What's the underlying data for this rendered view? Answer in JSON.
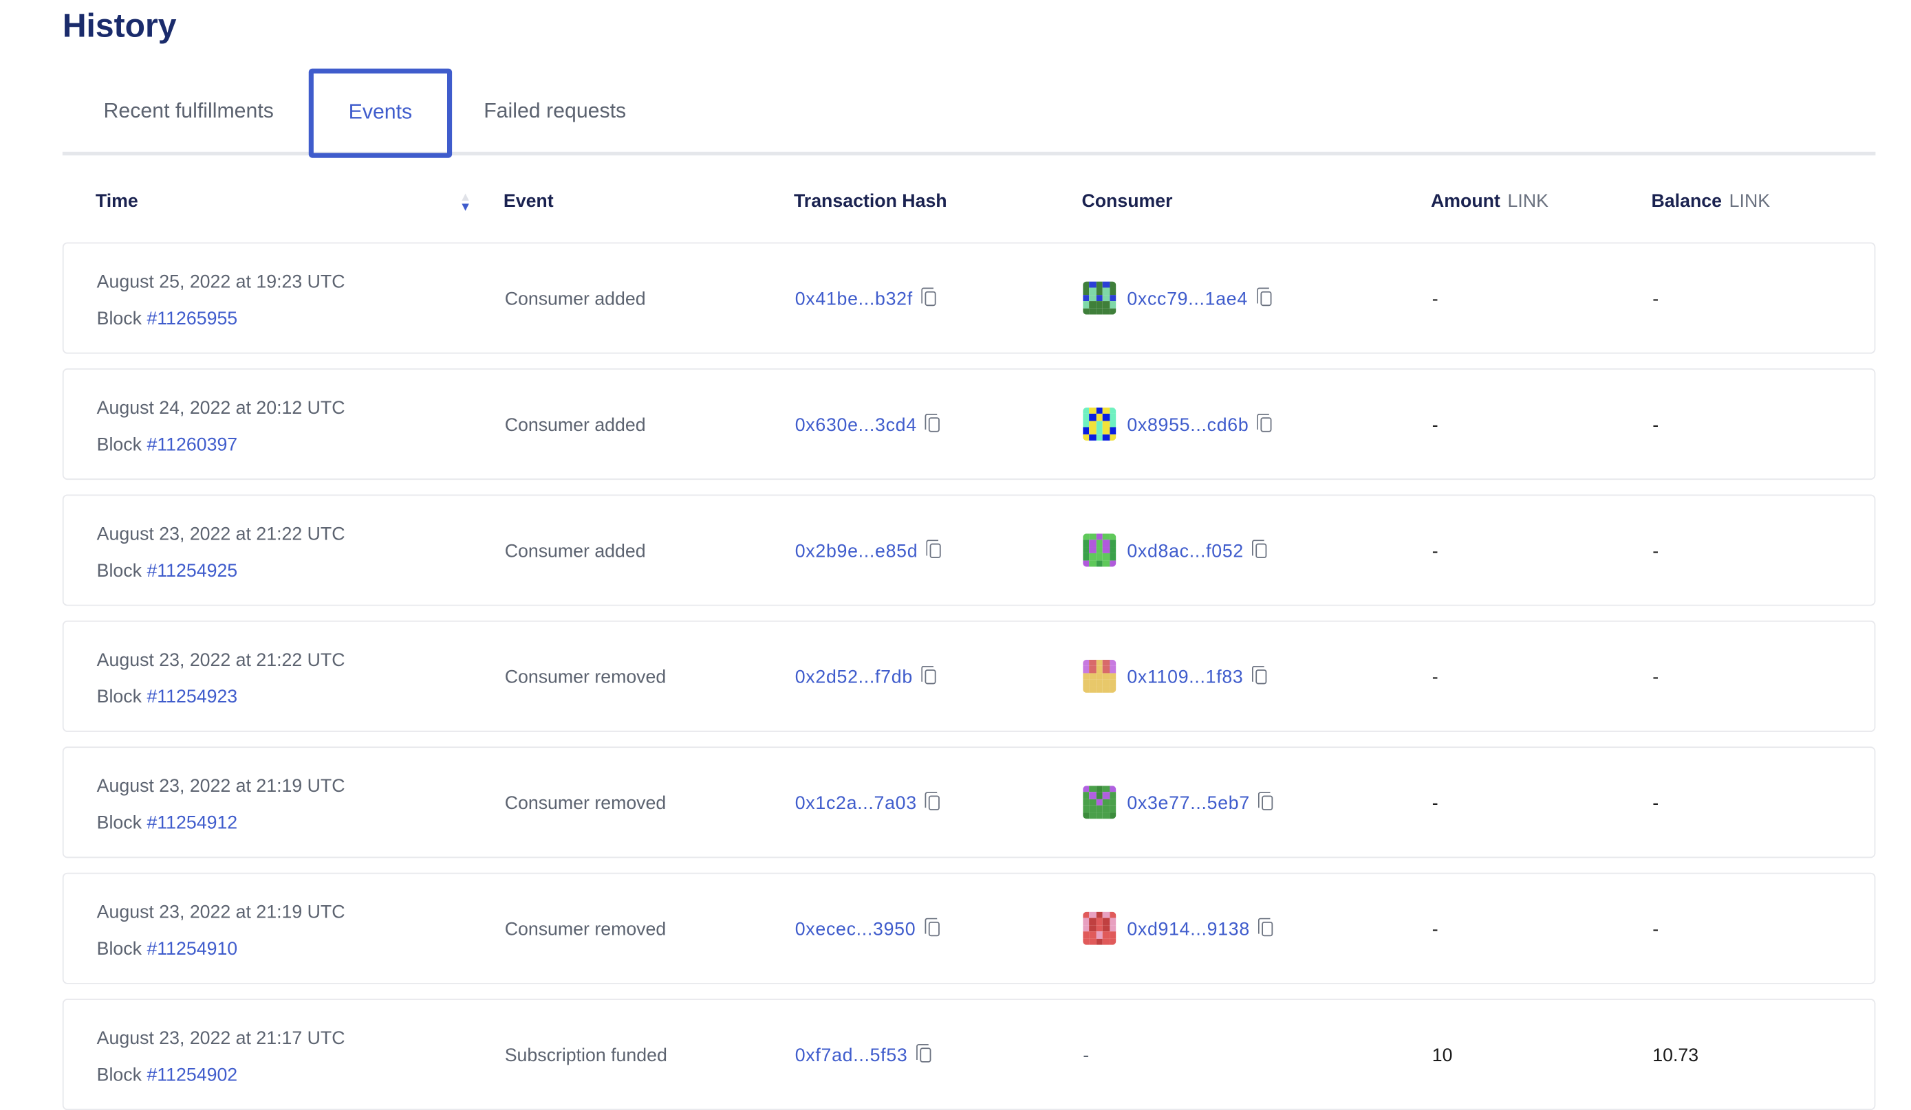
{
  "title": "History",
  "tabs": [
    {
      "label": "Recent fulfillments"
    },
    {
      "label": "Events",
      "active": true
    },
    {
      "label": "Failed requests"
    }
  ],
  "headers": {
    "time": "Time",
    "event": "Event",
    "tx": "Transaction Hash",
    "consumer": "Consumer",
    "amount": "Amount",
    "amount_unit": "LINK",
    "balance": "Balance",
    "balance_unit": "LINK"
  },
  "sort": {
    "column": "Time",
    "direction": "descending"
  },
  "block_label": "Block",
  "rows": [
    {
      "time": "August 25, 2022 at 19:23 UTC",
      "block": "#11265955",
      "event": "Consumer added",
      "tx": "0x41be...b32f",
      "consumer": "0xcc79...1ae4",
      "avatar": [
        "#3f7f3a",
        "#2b3fd6",
        "#7fd8a8"
      ],
      "amount": "-",
      "balance": "-"
    },
    {
      "time": "August 24, 2022 at 20:12 UTC",
      "block": "#11260397",
      "event": "Consumer added",
      "tx": "0x630e...3cd4",
      "consumer": "0x8955...cd6b",
      "avatar": [
        "#0a1ee0",
        "#f2e23a",
        "#6ff0c0"
      ],
      "amount": "-",
      "balance": "-"
    },
    {
      "time": "August 23, 2022 at 21:22 UTC",
      "block": "#11254925",
      "event": "Consumer added",
      "tx": "0x2b9e...e85d",
      "consumer": "0xd8ac...f052",
      "avatar": [
        "#5fc85a",
        "#b05adb",
        "#3aa04a"
      ],
      "amount": "-",
      "balance": "-"
    },
    {
      "time": "August 23, 2022 at 21:22 UTC",
      "block": "#11254923",
      "event": "Consumer removed",
      "tx": "0x2d52...f7db",
      "consumer": "0x1109...1f83",
      "avatar": [
        "#e8c86a",
        "#c77ae0",
        "#d86a6a"
      ],
      "amount": "-",
      "balance": "-"
    },
    {
      "time": "August 23, 2022 at 21:19 UTC",
      "block": "#11254912",
      "event": "Consumer removed",
      "tx": "0x1c2a...7a03",
      "consumer": "0x3e77...5eb7",
      "avatar": [
        "#4aa04a",
        "#b060e0",
        "#3c8c3c"
      ],
      "amount": "-",
      "balance": "-"
    },
    {
      "time": "August 23, 2022 at 21:19 UTC",
      "block": "#11254910",
      "event": "Consumer removed",
      "tx": "0xecec...3950",
      "consumer": "0xd914...9138",
      "avatar": [
        "#e05a5a",
        "#e8a0c0",
        "#c04040"
      ],
      "amount": "-",
      "balance": "-"
    },
    {
      "time": "August 23, 2022 at 21:17 UTC",
      "block": "#11254902",
      "event": "Subscription funded",
      "tx": "0xf7ad...5f53",
      "consumer": "-",
      "avatar": null,
      "amount": "10",
      "balance": "10.73"
    }
  ],
  "colors": {
    "accent": "#3f5ccc",
    "heading": "#1a2b6b"
  }
}
